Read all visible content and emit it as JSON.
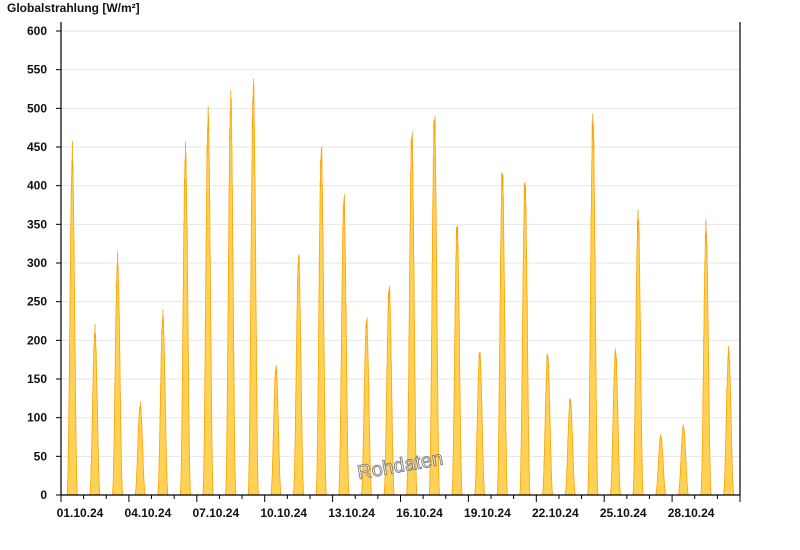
{
  "chart_data": {
    "type": "area",
    "title": "",
    "ylabel": "Globalstrahlung [W/m²]",
    "xlabel": "",
    "ylim": [
      0,
      620
    ],
    "yticks": [
      0,
      50,
      100,
      150,
      200,
      250,
      300,
      350,
      400,
      450,
      500,
      550,
      600
    ],
    "xlim": [
      "01.10.24",
      "31.10.24"
    ],
    "xtick_labels": [
      "01.10.24",
      "04.10.24",
      "07.10.24",
      "10.10.24",
      "13.10.24",
      "16.10.24",
      "19.10.24",
      "22.10.24",
      "25.10.24",
      "28.10.24"
    ],
    "grid": "horizontal",
    "watermark": "Rohdaten",
    "colors": {
      "fill": "#FFD255",
      "line": "#FFA000",
      "grid": "#E6E6E6",
      "axis": "#000000"
    },
    "series": [
      {
        "dates": [
          "01.10.24",
          "02.10.24",
          "03.10.24",
          "04.10.24",
          "05.10.24",
          "06.10.24",
          "07.10.24",
          "08.10.24",
          "09.10.24",
          "10.10.24",
          "11.10.24",
          "12.10.24",
          "13.10.24",
          "14.10.24",
          "15.10.24",
          "16.10.24",
          "17.10.24",
          "18.10.24",
          "19.10.24",
          "20.10.24",
          "21.10.24",
          "22.10.24",
          "23.10.24",
          "24.10.24",
          "25.10.24",
          "26.10.24",
          "27.10.24",
          "28.10.24",
          "29.10.24",
          "30.10.24"
        ],
        "daily_peak": [
          458,
          222,
          317,
          122,
          243,
          465,
          513,
          536,
          553,
          173,
          321,
          465,
          399,
          236,
          279,
          487,
          510,
          364,
          193,
          435,
          421,
          190,
          130,
          509,
          195,
          379,
          80,
          93,
          362,
          195
        ]
      }
    ]
  }
}
